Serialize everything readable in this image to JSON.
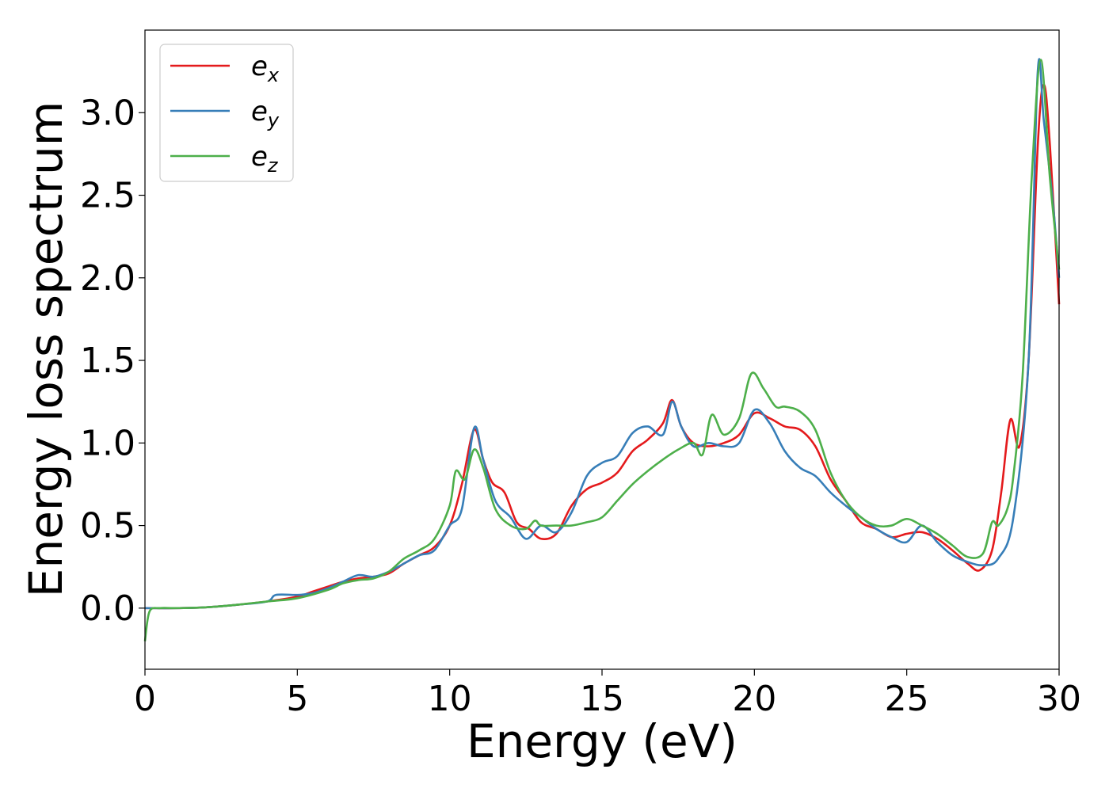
{
  "chart_data": {
    "type": "line",
    "title": "",
    "xlabel": "Energy (eV)",
    "ylabel": "Energy loss spectrum",
    "xlim": [
      0,
      30
    ],
    "ylim": [
      -0.37,
      3.5
    ],
    "xticks": [
      0,
      5,
      10,
      15,
      20,
      25,
      30
    ],
    "xtick_labels": [
      "0",
      "5",
      "10",
      "15",
      "20",
      "25",
      "30"
    ],
    "yticks": [
      0.0,
      0.5,
      1.0,
      1.5,
      2.0,
      2.5,
      3.0
    ],
    "ytick_labels": [
      "0.0",
      "0.5",
      "1.0",
      "1.5",
      "2.0",
      "2.5",
      "3.0"
    ],
    "grid": false,
    "legend_position": "top-left",
    "series": [
      {
        "name": "e",
        "sub": "x",
        "color": "#e41a1c",
        "points": [
          [
            0,
            0
          ],
          [
            1,
            0
          ],
          [
            2,
            0.005
          ],
          [
            3,
            0.02
          ],
          [
            4,
            0.04
          ],
          [
            5,
            0.07
          ],
          [
            5.5,
            0.1
          ],
          [
            6,
            0.13
          ],
          [
            6.5,
            0.16
          ],
          [
            7,
            0.18
          ],
          [
            7.5,
            0.19
          ],
          [
            8,
            0.21
          ],
          [
            8.5,
            0.27
          ],
          [
            9,
            0.32
          ],
          [
            9.5,
            0.37
          ],
          [
            10,
            0.5
          ],
          [
            10.4,
            0.75
          ],
          [
            10.8,
            1.08
          ],
          [
            11.1,
            0.9
          ],
          [
            11.4,
            0.76
          ],
          [
            11.8,
            0.7
          ],
          [
            12.2,
            0.52
          ],
          [
            12.6,
            0.48
          ],
          [
            13,
            0.42
          ],
          [
            13.5,
            0.45
          ],
          [
            14,
            0.62
          ],
          [
            14.5,
            0.72
          ],
          [
            15,
            0.76
          ],
          [
            15.5,
            0.82
          ],
          [
            16,
            0.95
          ],
          [
            16.5,
            1.02
          ],
          [
            17,
            1.12
          ],
          [
            17.3,
            1.26
          ],
          [
            17.6,
            1.1
          ],
          [
            18,
            1.0
          ],
          [
            18.5,
            0.98
          ],
          [
            19,
            1.0
          ],
          [
            19.5,
            1.05
          ],
          [
            20,
            1.18
          ],
          [
            20.5,
            1.15
          ],
          [
            21,
            1.1
          ],
          [
            21.5,
            1.08
          ],
          [
            22,
            0.98
          ],
          [
            22.5,
            0.78
          ],
          [
            23,
            0.65
          ],
          [
            23.5,
            0.52
          ],
          [
            24,
            0.48
          ],
          [
            24.5,
            0.43
          ],
          [
            25,
            0.45
          ],
          [
            25.5,
            0.46
          ],
          [
            26,
            0.42
          ],
          [
            26.5,
            0.35
          ],
          [
            27,
            0.27
          ],
          [
            27.4,
            0.23
          ],
          [
            27.8,
            0.35
          ],
          [
            28.1,
            0.7
          ],
          [
            28.4,
            1.14
          ],
          [
            28.7,
            0.98
          ],
          [
            29,
            1.5
          ],
          [
            29.3,
            2.8
          ],
          [
            29.5,
            3.17
          ],
          [
            29.7,
            2.8
          ],
          [
            30,
            1.84
          ]
        ]
      },
      {
        "name": "e",
        "sub": "y",
        "color": "#377eb8",
        "points": [
          [
            0,
            0
          ],
          [
            1,
            0
          ],
          [
            2,
            0.005
          ],
          [
            3,
            0.02
          ],
          [
            4,
            0.04
          ],
          [
            4.3,
            0.08
          ],
          [
            5,
            0.08
          ],
          [
            5.5,
            0.09
          ],
          [
            6,
            0.12
          ],
          [
            6.5,
            0.16
          ],
          [
            7,
            0.2
          ],
          [
            7.5,
            0.19
          ],
          [
            8,
            0.22
          ],
          [
            8.5,
            0.27
          ],
          [
            9,
            0.32
          ],
          [
            9.5,
            0.35
          ],
          [
            10,
            0.5
          ],
          [
            10.4,
            0.6
          ],
          [
            10.8,
            1.09
          ],
          [
            11.1,
            0.9
          ],
          [
            11.5,
            0.65
          ],
          [
            12,
            0.55
          ],
          [
            12.5,
            0.42
          ],
          [
            13,
            0.5
          ],
          [
            13.5,
            0.46
          ],
          [
            14,
            0.58
          ],
          [
            14.5,
            0.8
          ],
          [
            15,
            0.88
          ],
          [
            15.5,
            0.92
          ],
          [
            16,
            1.06
          ],
          [
            16.5,
            1.1
          ],
          [
            17,
            1.05
          ],
          [
            17.3,
            1.25
          ],
          [
            17.6,
            1.1
          ],
          [
            18,
            0.98
          ],
          [
            18.5,
            1.0
          ],
          [
            19,
            0.98
          ],
          [
            19.5,
            1.0
          ],
          [
            20,
            1.2
          ],
          [
            20.5,
            1.12
          ],
          [
            21,
            0.95
          ],
          [
            21.5,
            0.85
          ],
          [
            22,
            0.8
          ],
          [
            22.5,
            0.7
          ],
          [
            23,
            0.62
          ],
          [
            23.5,
            0.55
          ],
          [
            24,
            0.48
          ],
          [
            24.5,
            0.43
          ],
          [
            25,
            0.4
          ],
          [
            25.5,
            0.5
          ],
          [
            26,
            0.4
          ],
          [
            26.5,
            0.32
          ],
          [
            27,
            0.28
          ],
          [
            27.5,
            0.26
          ],
          [
            28,
            0.3
          ],
          [
            28.5,
            0.55
          ],
          [
            29,
            1.5
          ],
          [
            29.3,
            3.25
          ],
          [
            29.5,
            2.95
          ],
          [
            29.8,
            2.45
          ],
          [
            30,
            2.0
          ]
        ]
      },
      {
        "name": "e",
        "sub": "z",
        "color": "#4daf4a",
        "points": [
          [
            0,
            -0.2
          ],
          [
            0.15,
            -0.02
          ],
          [
            0.5,
            0
          ],
          [
            1,
            0
          ],
          [
            2,
            0.005
          ],
          [
            3,
            0.02
          ],
          [
            4,
            0.04
          ],
          [
            5,
            0.06
          ],
          [
            6,
            0.11
          ],
          [
            6.5,
            0.15
          ],
          [
            7,
            0.17
          ],
          [
            7.5,
            0.18
          ],
          [
            8,
            0.22
          ],
          [
            8.5,
            0.3
          ],
          [
            9,
            0.35
          ],
          [
            9.5,
            0.42
          ],
          [
            10,
            0.62
          ],
          [
            10.2,
            0.83
          ],
          [
            10.5,
            0.78
          ],
          [
            10.8,
            0.96
          ],
          [
            11.1,
            0.85
          ],
          [
            11.5,
            0.6
          ],
          [
            12,
            0.5
          ],
          [
            12.5,
            0.48
          ],
          [
            12.8,
            0.53
          ],
          [
            13,
            0.5
          ],
          [
            13.5,
            0.5
          ],
          [
            14,
            0.5
          ],
          [
            14.5,
            0.52
          ],
          [
            15,
            0.55
          ],
          [
            15.5,
            0.65
          ],
          [
            16,
            0.75
          ],
          [
            16.5,
            0.83
          ],
          [
            17,
            0.9
          ],
          [
            17.5,
            0.96
          ],
          [
            18,
            1.0
          ],
          [
            18.3,
            0.93
          ],
          [
            18.6,
            1.17
          ],
          [
            19,
            1.05
          ],
          [
            19.5,
            1.15
          ],
          [
            19.9,
            1.42
          ],
          [
            20.3,
            1.33
          ],
          [
            20.7,
            1.22
          ],
          [
            21,
            1.22
          ],
          [
            21.5,
            1.19
          ],
          [
            22,
            1.08
          ],
          [
            22.5,
            0.82
          ],
          [
            23,
            0.65
          ],
          [
            23.5,
            0.55
          ],
          [
            24,
            0.5
          ],
          [
            24.5,
            0.5
          ],
          [
            25,
            0.54
          ],
          [
            25.5,
            0.5
          ],
          [
            26,
            0.45
          ],
          [
            26.5,
            0.38
          ],
          [
            27,
            0.31
          ],
          [
            27.5,
            0.33
          ],
          [
            27.8,
            0.52
          ],
          [
            28,
            0.5
          ],
          [
            28.3,
            0.6
          ],
          [
            28.5,
            0.8
          ],
          [
            28.8,
            1.4
          ],
          [
            29.1,
            2.6
          ],
          [
            29.4,
            3.32
          ],
          [
            29.7,
            2.6
          ],
          [
            30,
            2.05
          ]
        ]
      }
    ]
  }
}
